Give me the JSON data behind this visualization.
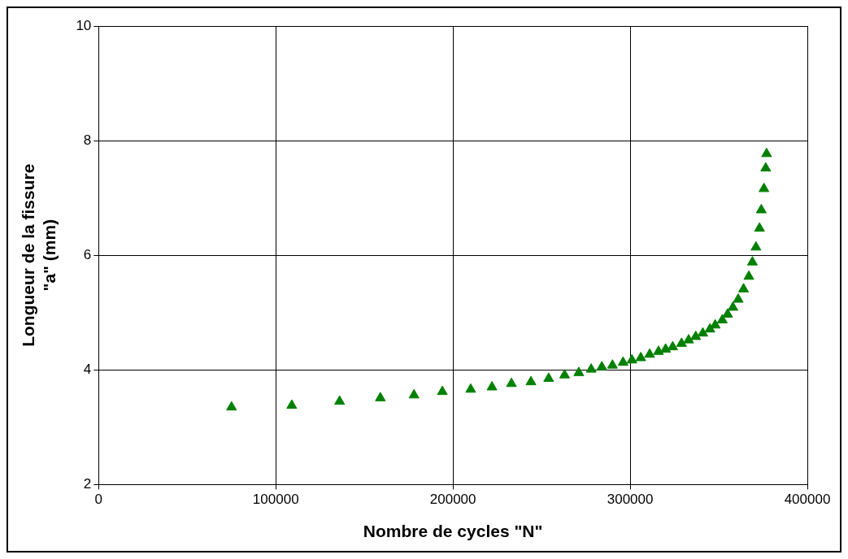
{
  "chart_data": {
    "type": "scatter",
    "xlabel": "Nombre de cycles \"N\"",
    "ylabel": "Longueur de la fissure\n\"a\" (mm)",
    "xlim": [
      0,
      400000
    ],
    "xticks": [
      0,
      100000,
      200000,
      300000,
      400000
    ],
    "ylim": [
      2,
      10
    ],
    "yticks": [
      2,
      4,
      6,
      8,
      10
    ],
    "grid": true,
    "marker": "triangle",
    "series": [
      {
        "color": "#008000",
        "x": [
          75000,
          109000,
          136000,
          159000,
          178000,
          194000,
          210000,
          222000,
          233000,
          244000,
          254000,
          263000,
          271000,
          278000,
          284000,
          290000,
          296000,
          301000,
          306000,
          311000,
          316000,
          320000,
          324000,
          329000,
          333000,
          337000,
          341000,
          345000,
          348000,
          352000,
          355000,
          358000,
          361000,
          364000,
          367000,
          369000,
          371000,
          373000,
          374000,
          375500,
          376500,
          377000
        ],
        "values": [
          3.35,
          3.38,
          3.45,
          3.51,
          3.56,
          3.62,
          3.66,
          3.7,
          3.76,
          3.79,
          3.85,
          3.91,
          3.95,
          4.01,
          4.05,
          4.08,
          4.13,
          4.17,
          4.21,
          4.27,
          4.32,
          4.36,
          4.4,
          4.46,
          4.52,
          4.58,
          4.64,
          4.71,
          4.78,
          4.87,
          4.97,
          5.09,
          5.23,
          5.41,
          5.63,
          5.88,
          6.14,
          6.47,
          6.79,
          7.16,
          7.52,
          7.77
        ]
      }
    ]
  }
}
